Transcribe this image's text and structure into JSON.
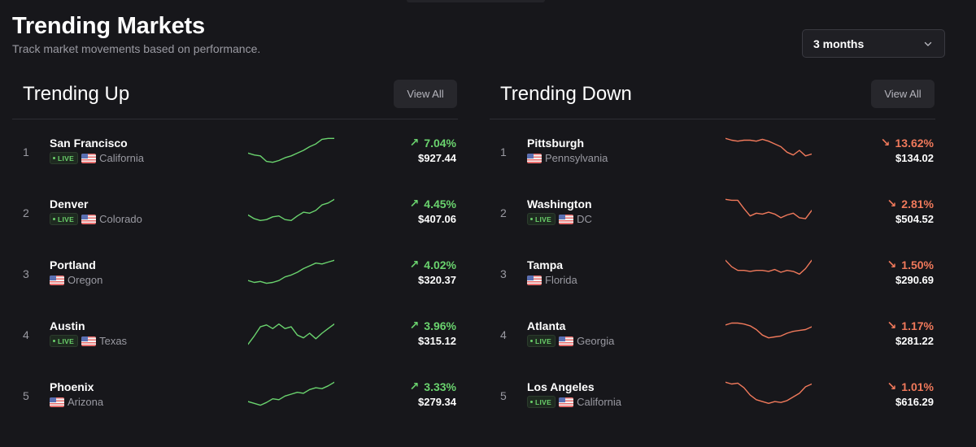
{
  "header": {
    "title": "Trending Markets",
    "subtitle": "Track market movements based on performance."
  },
  "period_select": {
    "value": "3 months",
    "icon": "chevron-down-icon"
  },
  "colors": {
    "up": "#6ad36e",
    "down": "#f0795b",
    "background": "#17171b"
  },
  "trending_up": {
    "title": "Trending Up",
    "view_all_label": "View All",
    "arrow": "↗",
    "rows": [
      {
        "rank": "1",
        "city": "San Francisco",
        "live": true,
        "live_label": "LIVE",
        "state": "California",
        "change": "7.04%",
        "price": "$927.44",
        "trend": [
          12,
          10,
          9,
          3,
          2,
          4,
          7,
          9,
          12,
          15,
          19,
          22,
          27,
          28,
          28
        ]
      },
      {
        "rank": "2",
        "city": "Denver",
        "live": true,
        "live_label": "LIVE",
        "state": "Colorado",
        "change": "4.45%",
        "price": "$407.06",
        "trend": [
          11,
          7,
          5,
          6,
          9,
          10,
          6,
          5,
          10,
          14,
          13,
          16,
          22,
          24,
          28
        ]
      },
      {
        "rank": "3",
        "city": "Portland",
        "live": false,
        "live_label": "",
        "state": "Oregon",
        "change": "4.02%",
        "price": "$320.37",
        "trend": [
          6,
          4,
          5,
          3,
          4,
          6,
          10,
          12,
          15,
          19,
          22,
          25,
          24,
          26,
          28
        ]
      },
      {
        "rank": "4",
        "city": "Austin",
        "live": true,
        "live_label": "LIVE",
        "state": "Texas",
        "change": "3.96%",
        "price": "$315.12",
        "trend": [
          3,
          12,
          22,
          24,
          20,
          25,
          20,
          22,
          13,
          10,
          15,
          9,
          15,
          20,
          25
        ]
      },
      {
        "rank": "5",
        "city": "Phoenix",
        "live": false,
        "live_label": "",
        "state": "Arizona",
        "change": "3.33%",
        "price": "$279.34",
        "trend": [
          7,
          5,
          3,
          6,
          10,
          9,
          13,
          15,
          17,
          16,
          20,
          22,
          21,
          24,
          28
        ]
      }
    ]
  },
  "trending_down": {
    "title": "Trending Down",
    "view_all_label": "View All",
    "arrow": "↘",
    "rows": [
      {
        "rank": "1",
        "city": "Pittsburgh",
        "live": false,
        "live_label": "",
        "state": "Pennsylvania",
        "change": "13.62%",
        "price": "$134.02",
        "trend": [
          28,
          26,
          25,
          26,
          26,
          25,
          27,
          25,
          22,
          19,
          13,
          10,
          15,
          9,
          11
        ]
      },
      {
        "rank": "2",
        "city": "Washington",
        "live": true,
        "live_label": "LIVE",
        "state": "DC",
        "change": "2.81%",
        "price": "$504.52",
        "trend": [
          28,
          27,
          27,
          18,
          10,
          13,
          12,
          14,
          12,
          8,
          11,
          13,
          8,
          7,
          16
        ]
      },
      {
        "rank": "3",
        "city": "Tampa",
        "live": false,
        "live_label": "",
        "state": "Florida",
        "change": "1.50%",
        "price": "$290.69",
        "trend": [
          28,
          21,
          17,
          17,
          16,
          17,
          17,
          16,
          18,
          15,
          17,
          16,
          13,
          19,
          28
        ]
      },
      {
        "rank": "4",
        "city": "Atlanta",
        "live": true,
        "live_label": "LIVE",
        "state": "Georgia",
        "change": "1.17%",
        "price": "$281.22",
        "trend": [
          24,
          26,
          26,
          25,
          23,
          19,
          13,
          10,
          11,
          12,
          15,
          17,
          18,
          19,
          22
        ]
      },
      {
        "rank": "5",
        "city": "Los Angeles",
        "live": true,
        "live_label": "LIVE",
        "state": "California",
        "change": "1.01%",
        "price": "$616.29",
        "trend": [
          28,
          26,
          27,
          22,
          14,
          9,
          7,
          5,
          7,
          6,
          8,
          12,
          16,
          23,
          26
        ]
      }
    ]
  }
}
